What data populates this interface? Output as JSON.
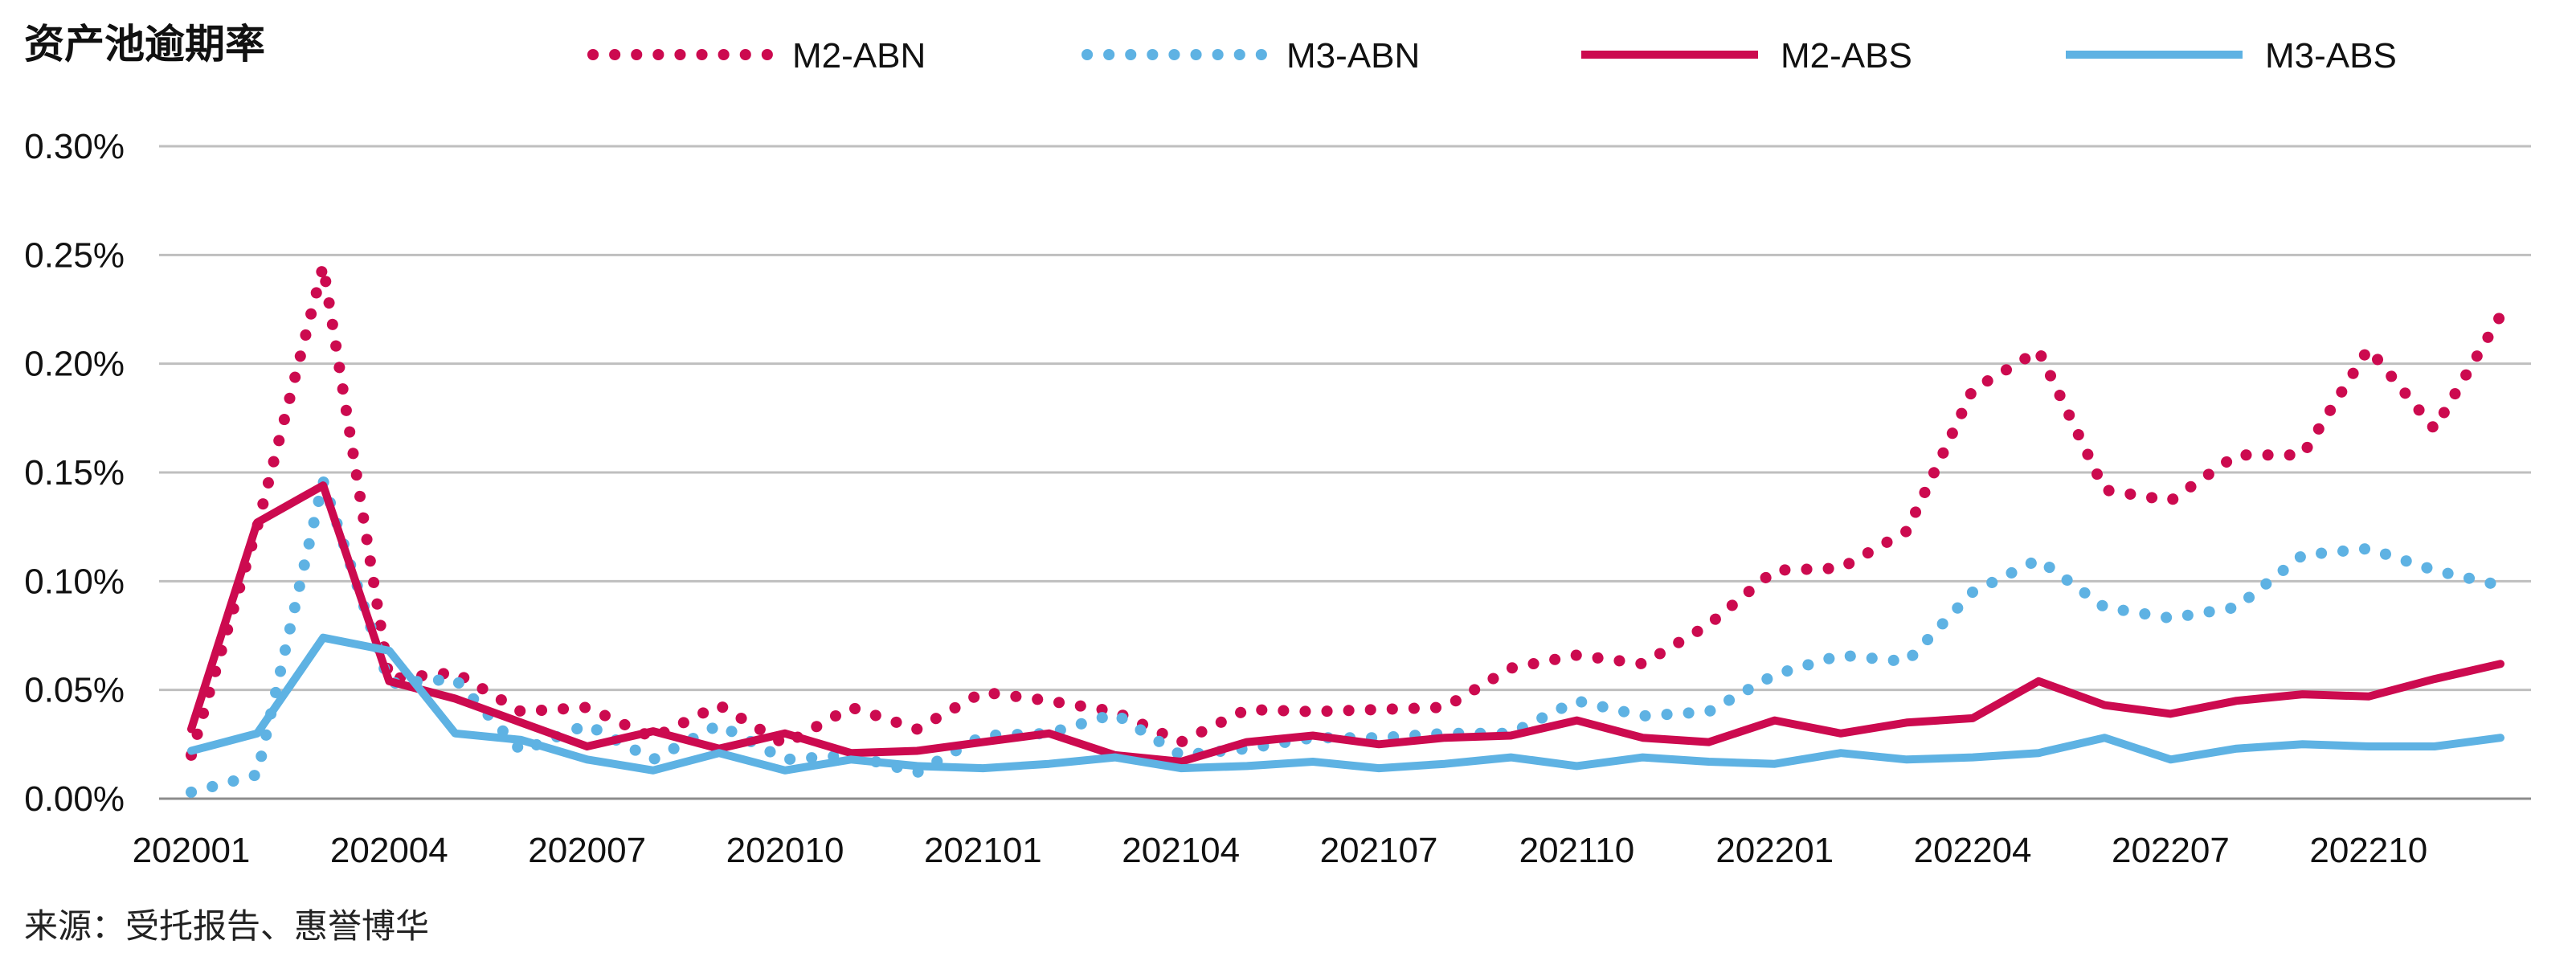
{
  "chart_data": {
    "type": "line",
    "title": "资产池逾期率",
    "source": "来源：受托报告、惠誉博华",
    "ylim": [
      0,
      0.003
    ],
    "y_ticks": [
      "0.00%",
      "0.05%",
      "0.10%",
      "0.15%",
      "0.20%",
      "0.25%",
      "0.30%"
    ],
    "y_tick_values": [
      0,
      0.0005,
      0.001,
      0.0015,
      0.002,
      0.0025,
      0.003
    ],
    "grid": true,
    "legend_position": "top",
    "categories": [
      "202001",
      "202002",
      "202003",
      "202004",
      "202005",
      "202006",
      "202007",
      "202008",
      "202009",
      "202010",
      "202011",
      "202012",
      "202101",
      "202102",
      "202103",
      "202104",
      "202105",
      "202106",
      "202107",
      "202108",
      "202109",
      "202110",
      "202111",
      "202112",
      "202201",
      "202202",
      "202203",
      "202204",
      "202205",
      "202206",
      "202207",
      "202208",
      "202209",
      "202210",
      "202211",
      "202212"
    ],
    "x_tick_labels": [
      "202001",
      "202004",
      "202007",
      "202010",
      "202101",
      "202104",
      "202107",
      "202110",
      "202201",
      "202204",
      "202207",
      "202210"
    ],
    "series": [
      {
        "name": "M2-ABN",
        "style": "dotted",
        "color": "#cc0a4f",
        "values": [
          0.0002,
          0.00125,
          0.00245,
          0.00055,
          0.00058,
          0.0004,
          0.00042,
          0.00028,
          0.00043,
          0.00025,
          0.00042,
          0.00032,
          0.00049,
          0.00045,
          0.0004,
          0.00026,
          0.00041,
          0.0004,
          0.00041,
          0.00042,
          0.0006,
          0.00066,
          0.00062,
          0.0008,
          0.00105,
          0.00106,
          0.00123,
          0.00188,
          0.00206,
          0.00142,
          0.00137,
          0.00158,
          0.00158,
          0.00207,
          0.0017,
          0.00222
        ]
      },
      {
        "name": "M3-ABN",
        "style": "dotted",
        "color": "#5eb2e3",
        "values": [
          3e-05,
          0.00011,
          0.00146,
          0.00053,
          0.00055,
          0.00022,
          0.00034,
          0.00018,
          0.00034,
          0.00018,
          0.0002,
          0.00012,
          0.00029,
          0.0003,
          0.00039,
          0.0002,
          0.00023,
          0.00028,
          0.00028,
          0.0003,
          0.0003,
          0.00045,
          0.00038,
          0.0004,
          0.00057,
          0.00066,
          0.00063,
          0.00095,
          0.0011,
          0.00088,
          0.00083,
          0.00088,
          0.00112,
          0.00115,
          0.00105,
          0.00098
        ]
      },
      {
        "name": "M2-ABS",
        "style": "solid",
        "color": "#cc0a4f",
        "values": [
          0.00032,
          0.00127,
          0.00144,
          0.00054,
          0.00046,
          0.00035,
          0.00024,
          0.00031,
          0.00023,
          0.0003,
          0.00021,
          0.00022,
          0.00026,
          0.0003,
          0.0002,
          0.00017,
          0.00026,
          0.00029,
          0.00025,
          0.00028,
          0.00029,
          0.00036,
          0.00028,
          0.00026,
          0.00036,
          0.0003,
          0.00035,
          0.00037,
          0.00054,
          0.00043,
          0.00039,
          0.00045,
          0.00048,
          0.00047,
          0.00055,
          0.00062
        ]
      },
      {
        "name": "M3-ABS",
        "style": "solid",
        "color": "#5eb2e3",
        "values": [
          0.00022,
          0.0003,
          0.00074,
          0.00068,
          0.0003,
          0.00027,
          0.00018,
          0.00013,
          0.00021,
          0.00013,
          0.00018,
          0.00015,
          0.00014,
          0.00016,
          0.00019,
          0.00014,
          0.00015,
          0.00017,
          0.00014,
          0.00016,
          0.00019,
          0.00015,
          0.00019,
          0.00017,
          0.00016,
          0.00021,
          0.00018,
          0.00019,
          0.00021,
          0.00028,
          0.00018,
          0.00023,
          0.00025,
          0.00024,
          0.00024,
          0.00028
        ]
      }
    ]
  }
}
